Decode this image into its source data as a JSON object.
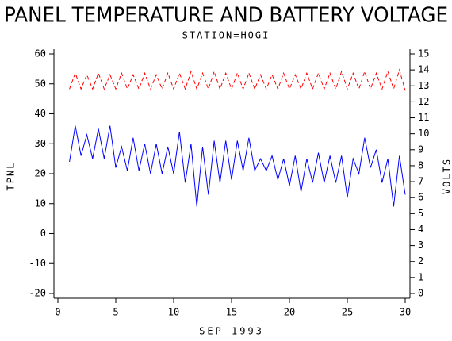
{
  "chart_data": {
    "type": "line",
    "title": "PANEL TEMPERATURE AND BATTERY VOLTAGE",
    "subtitle": "STATION=HOGI",
    "x_label": "SEP 1993",
    "y_label": "TPNL",
    "y2_label": "VOLTS",
    "x": [
      1,
      1.5,
      2,
      2.5,
      3,
      3.5,
      4,
      4.5,
      5,
      5.5,
      6,
      6.5,
      7,
      7.5,
      8,
      8.5,
      9,
      9.5,
      10,
      10.5,
      11,
      11.5,
      12,
      12.5,
      13,
      13.5,
      14,
      14.5,
      15,
      15.5,
      16,
      16.5,
      17,
      17.5,
      18,
      18.5,
      19,
      19.5,
      20,
      20.5,
      21,
      21.5,
      22,
      22.5,
      23,
      23.5,
      24,
      24.5,
      25,
      25.5,
      26,
      26.5,
      27,
      27.5,
      28,
      28.5,
      29,
      29.5,
      30
    ],
    "series": [
      {
        "name": "TPNL",
        "color": "#0000ff",
        "axis": "y",
        "values": [
          24,
          36,
          26,
          33,
          25,
          35,
          25,
          36,
          22,
          29,
          21,
          32,
          21,
          30,
          20,
          30,
          20,
          29,
          20,
          34,
          17,
          30,
          9,
          29,
          13,
          31,
          17,
          31,
          18,
          31,
          21,
          32,
          21,
          25,
          21,
          26,
          18,
          25,
          16,
          26,
          14,
          25,
          17,
          27,
          17,
          26,
          17,
          26,
          12,
          25,
          20,
          32,
          22,
          28,
          17,
          25,
          9,
          26,
          13
        ]
      },
      {
        "name": "VOLTS",
        "color": "#ff0000",
        "axis": "y2",
        "dashed": true,
        "values": [
          12.8,
          13.8,
          12.8,
          13.7,
          12.8,
          13.8,
          12.8,
          13.7,
          12.8,
          13.8,
          12.8,
          13.7,
          12.8,
          13.8,
          12.8,
          13.7,
          12.8,
          13.8,
          12.8,
          13.8,
          12.8,
          13.9,
          12.8,
          13.8,
          12.8,
          13.9,
          12.8,
          13.8,
          12.8,
          13.8,
          12.8,
          13.8,
          12.8,
          13.7,
          12.8,
          13.7,
          12.8,
          13.8,
          12.8,
          13.7,
          12.8,
          13.8,
          12.8,
          13.8,
          12.8,
          13.8,
          12.8,
          13.9,
          12.8,
          13.8,
          12.8,
          13.9,
          12.8,
          13.8,
          12.8,
          13.9,
          12.8,
          14.0,
          12.7
        ]
      }
    ],
    "xlim": [
      0,
      30
    ],
    "xticks": [
      0,
      5,
      10,
      15,
      20,
      25,
      30
    ],
    "ylim": [
      -20,
      60
    ],
    "yticks": [
      -20,
      -10,
      0,
      10,
      20,
      30,
      40,
      50,
      60
    ],
    "y2lim": [
      0,
      15
    ],
    "y2ticks": [
      0,
      1,
      2,
      3,
      4,
      5,
      6,
      7,
      8,
      9,
      10,
      11,
      12,
      13,
      14,
      15
    ]
  }
}
